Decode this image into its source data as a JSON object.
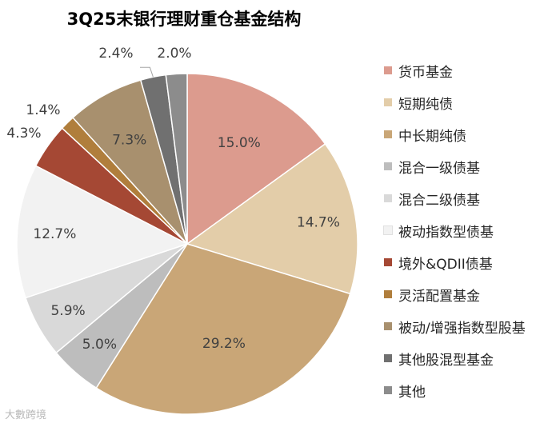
{
  "chart_data": {
    "type": "pie",
    "title": "3Q25末银行理财重仓基金结构",
    "legend_position": "right",
    "slices": [
      {
        "name": "货币基金",
        "value": 15.0,
        "label": "15.0%",
        "color": "#DC9B8E"
      },
      {
        "name": "短期纯债",
        "value": 14.7,
        "label": "14.7%",
        "color": "#E3CDA9"
      },
      {
        "name": "中长期纯债",
        "value": 29.2,
        "label": "29.2%",
        "color": "#C9A677"
      },
      {
        "name": "混合一级债基",
        "value": 5.0,
        "label": "5.0%",
        "color": "#BDBDBD"
      },
      {
        "name": "混合二级债基",
        "value": 5.9,
        "label": "5.9%",
        "color": "#D9D9D9"
      },
      {
        "name": "被动指数型债基",
        "value": 12.7,
        "label": "12.7%",
        "color": "#F2F2F2"
      },
      {
        "name": "境外&QDII债基",
        "value": 4.3,
        "label": "4.3%",
        "color": "#A54834"
      },
      {
        "name": "灵活配置基金",
        "value": 1.4,
        "label": "1.4%",
        "color": "#B07E3C"
      },
      {
        "name": "被动/增强指数型股基",
        "value": 7.3,
        "label": "7.3%",
        "color": "#A8906E"
      },
      {
        "name": "其他股混型基金",
        "value": 2.4,
        "label": "2.4%",
        "color": "#707070"
      },
      {
        "name": "其他",
        "value": 2.0,
        "label": "2.0%",
        "color": "#8C8C8C"
      }
    ]
  },
  "watermark": "大數跨境"
}
